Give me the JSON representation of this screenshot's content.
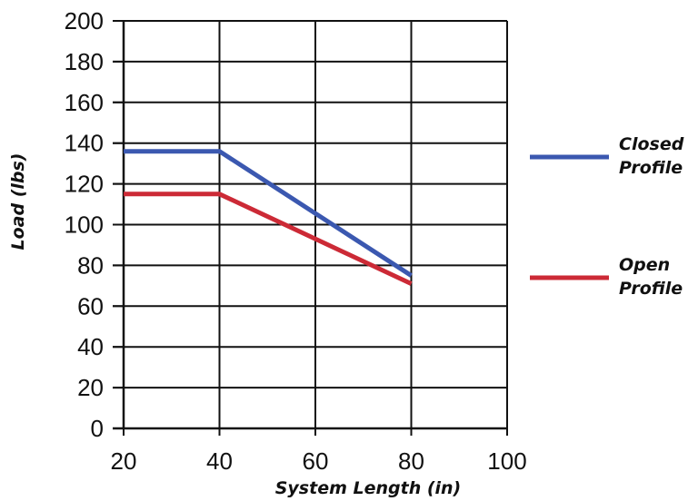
{
  "chart_data": {
    "type": "line",
    "title": "",
    "xlabel": "System Length (in)",
    "ylabel": "Load (lbs)",
    "xlim": [
      20,
      100
    ],
    "ylim": [
      0,
      200
    ],
    "xticks": [
      20,
      40,
      60,
      80,
      100
    ],
    "yticks": [
      0,
      20,
      40,
      60,
      80,
      100,
      120,
      140,
      160,
      180,
      200
    ],
    "grid": true,
    "legend_position": "right",
    "series": [
      {
        "name_lines": [
          "Closed",
          "Profile"
        ],
        "color": "#3b58b0",
        "x": [
          20,
          40,
          80
        ],
        "y": [
          136,
          136,
          75
        ]
      },
      {
        "name_lines": [
          "Open",
          "Profile"
        ],
        "color": "#cc2a36",
        "x": [
          20,
          40,
          80
        ],
        "y": [
          115,
          115,
          71
        ]
      }
    ]
  }
}
